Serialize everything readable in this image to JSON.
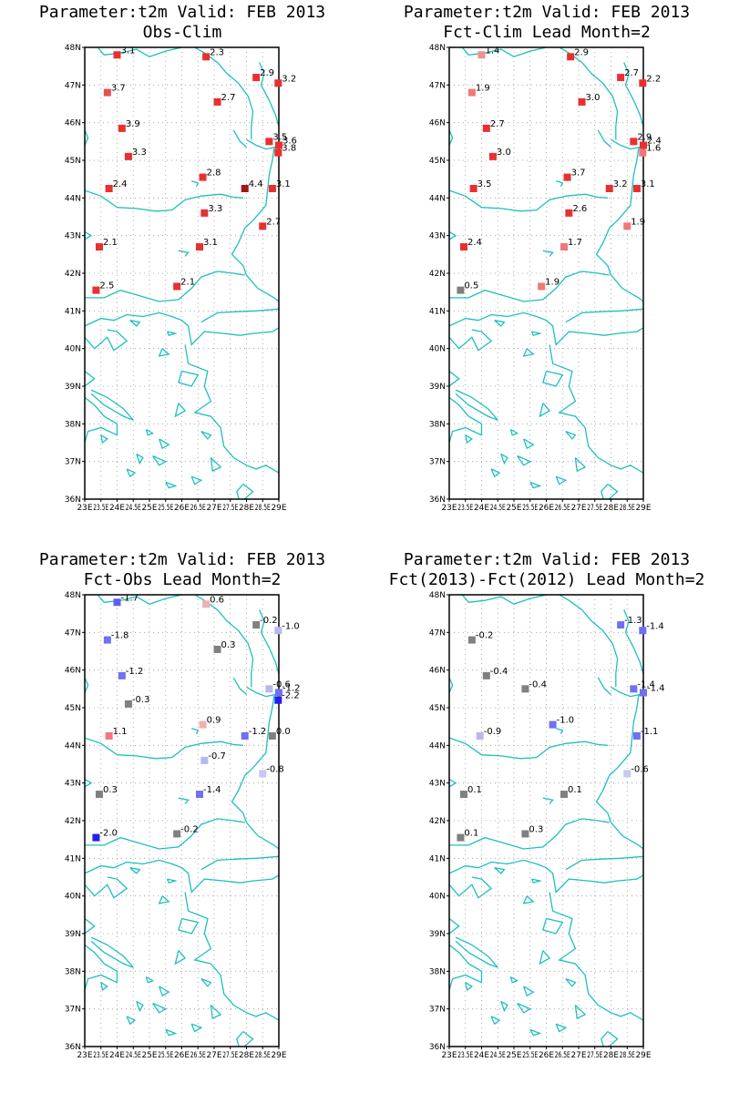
{
  "panels": [
    {
      "title1": "Parameter:t2m Valid: FEB 2013",
      "title2": "Obs-Clim",
      "stations": [
        {
          "lon": 24.0,
          "lat": 47.8,
          "label": "3.1",
          "color": "#e83030"
        },
        {
          "lon": 26.75,
          "lat": 47.75,
          "label": "2.3",
          "color": "#e83030"
        },
        {
          "lon": 28.3,
          "lat": 47.2,
          "label": "2.9",
          "color": "#e83030"
        },
        {
          "lon": 28.98,
          "lat": 47.05,
          "label": "3.2",
          "color": "#e83030"
        },
        {
          "lon": 23.7,
          "lat": 46.8,
          "label": "3.7",
          "color": "#e85050"
        },
        {
          "lon": 27.1,
          "lat": 46.55,
          "label": "2.7",
          "color": "#e83030"
        },
        {
          "lon": 24.15,
          "lat": 45.85,
          "label": "3.9",
          "color": "#e83030"
        },
        {
          "lon": 28.7,
          "lat": 45.5,
          "label": "3.5",
          "color": "#e83030"
        },
        {
          "lon": 29.0,
          "lat": 45.4,
          "label": "3.6",
          "color": "#e83030"
        },
        {
          "lon": 28.98,
          "lat": 45.2,
          "label": "3.8",
          "color": "#e83030"
        },
        {
          "lon": 24.35,
          "lat": 45.1,
          "label": "3.3",
          "color": "#e83030"
        },
        {
          "lon": 26.65,
          "lat": 44.55,
          "label": "2.8",
          "color": "#e83030"
        },
        {
          "lon": 27.95,
          "lat": 44.25,
          "label": "4.4",
          "color": "#a01818"
        },
        {
          "lon": 28.8,
          "lat": 44.25,
          "label": "3.1",
          "color": "#e83030"
        },
        {
          "lon": 23.75,
          "lat": 44.25,
          "label": "2.4",
          "color": "#e83030"
        },
        {
          "lon": 26.7,
          "lat": 43.6,
          "label": "3.3",
          "color": "#e83030"
        },
        {
          "lon": 28.5,
          "lat": 43.25,
          "label": "2.7",
          "color": "#e83030"
        },
        {
          "lon": 23.45,
          "lat": 42.7,
          "label": "2.1",
          "color": "#e83030"
        },
        {
          "lon": 26.55,
          "lat": 42.7,
          "label": "3.1",
          "color": "#e83030"
        },
        {
          "lon": 23.35,
          "lat": 41.55,
          "label": "2.5",
          "color": "#e83030"
        },
        {
          "lon": 25.85,
          "lat": 41.65,
          "label": "2.1",
          "color": "#e83030"
        }
      ]
    },
    {
      "title1": "Parameter:t2m Valid: FEB 2013",
      "title2": "Fct-Clim Lead Month=2",
      "stations": [
        {
          "lon": 24.0,
          "lat": 47.8,
          "label": "1.4",
          "color": "#f09090"
        },
        {
          "lon": 26.75,
          "lat": 47.75,
          "label": "2.9",
          "color": "#e83030"
        },
        {
          "lon": 28.3,
          "lat": 47.2,
          "label": "2.7",
          "color": "#e83030"
        },
        {
          "lon": 28.98,
          "lat": 47.05,
          "label": "2.2",
          "color": "#e83030"
        },
        {
          "lon": 23.7,
          "lat": 46.8,
          "label": "1.9",
          "color": "#f07878"
        },
        {
          "lon": 27.1,
          "lat": 46.55,
          "label": "3.0",
          "color": "#e83030"
        },
        {
          "lon": 24.15,
          "lat": 45.85,
          "label": "2.7",
          "color": "#e83030"
        },
        {
          "lon": 28.7,
          "lat": 45.5,
          "label": "2.9",
          "color": "#e83030"
        },
        {
          "lon": 29.0,
          "lat": 45.4,
          "label": "2.4",
          "color": "#e83030"
        },
        {
          "lon": 28.98,
          "lat": 45.2,
          "label": "1.6",
          "color": "#f07878"
        },
        {
          "lon": 24.35,
          "lat": 45.1,
          "label": "3.0",
          "color": "#e83030"
        },
        {
          "lon": 26.65,
          "lat": 44.55,
          "label": "3.7",
          "color": "#e83030"
        },
        {
          "lon": 27.95,
          "lat": 44.25,
          "label": "3.2",
          "color": "#e83030"
        },
        {
          "lon": 28.8,
          "lat": 44.25,
          "label": "3.1",
          "color": "#e83030"
        },
        {
          "lon": 23.75,
          "lat": 44.25,
          "label": "3.5",
          "color": "#e83030"
        },
        {
          "lon": 26.7,
          "lat": 43.6,
          "label": "2.6",
          "color": "#e83030"
        },
        {
          "lon": 28.5,
          "lat": 43.25,
          "label": "1.9",
          "color": "#f07878"
        },
        {
          "lon": 23.45,
          "lat": 42.7,
          "label": "2.4",
          "color": "#e83030"
        },
        {
          "lon": 26.55,
          "lat": 42.7,
          "label": "1.7",
          "color": "#f07878"
        },
        {
          "lon": 23.35,
          "lat": 41.55,
          "label": "0.5",
          "color": "#808080"
        },
        {
          "lon": 25.85,
          "lat": 41.65,
          "label": "1.9",
          "color": "#f07878"
        }
      ]
    },
    {
      "title1": "Parameter:t2m Valid: FEB 2013",
      "title2": "Fct-Obs Lead Month=2",
      "stations": [
        {
          "lon": 24.0,
          "lat": 47.8,
          "label": "-1.7",
          "color": "#6060f0"
        },
        {
          "lon": 26.75,
          "lat": 47.75,
          "label": "0.6",
          "color": "#f0b0b0"
        },
        {
          "lon": 28.3,
          "lat": 47.2,
          "label": "-0.2",
          "color": "#808080"
        },
        {
          "lon": 28.98,
          "lat": 47.05,
          "label": "-1.0",
          "color": "#b8b8f0"
        },
        {
          "lon": 23.7,
          "lat": 46.8,
          "label": "-1.8",
          "color": "#7070f0"
        },
        {
          "lon": 27.1,
          "lat": 46.55,
          "label": "0.3",
          "color": "#808080"
        },
        {
          "lon": 24.15,
          "lat": 45.85,
          "label": "-1.2",
          "color": "#7070f0"
        },
        {
          "lon": 28.7,
          "lat": 45.5,
          "label": "-0.6",
          "color": "#b8b8f0"
        },
        {
          "lon": 29.0,
          "lat": 45.4,
          "label": "-1.2",
          "color": "#7070f0"
        },
        {
          "lon": 28.98,
          "lat": 45.2,
          "label": "-2.2",
          "color": "#2020f0"
        },
        {
          "lon": 24.35,
          "lat": 45.1,
          "label": "-0.3",
          "color": "#808080"
        },
        {
          "lon": 26.65,
          "lat": 44.55,
          "label": "0.9",
          "color": "#f0b0b0"
        },
        {
          "lon": 27.95,
          "lat": 44.25,
          "label": "-1.2",
          "color": "#7070f0"
        },
        {
          "lon": 28.8,
          "lat": 44.25,
          "label": "0.0",
          "color": "#808080"
        },
        {
          "lon": 23.75,
          "lat": 44.25,
          "label": "1.1",
          "color": "#f07878"
        },
        {
          "lon": 26.7,
          "lat": 43.6,
          "label": "-0.7",
          "color": "#b8b8f0"
        },
        {
          "lon": 28.5,
          "lat": 43.25,
          "label": "-0.8",
          "color": "#c8c8f0"
        },
        {
          "lon": 23.45,
          "lat": 42.7,
          "label": "0.3",
          "color": "#808080"
        },
        {
          "lon": 26.55,
          "lat": 42.7,
          "label": "-1.4",
          "color": "#7070f0"
        },
        {
          "lon": 23.35,
          "lat": 41.55,
          "label": "-2.0",
          "color": "#2020f0"
        },
        {
          "lon": 25.85,
          "lat": 41.65,
          "label": "-0.2",
          "color": "#808080"
        }
      ]
    },
    {
      "title1": "Parameter:t2m Valid: FEB 2013",
      "title2": "Fct(2013)-Fct(2012) Lead Month=2",
      "stations": [
        {
          "lon": 28.3,
          "lat": 47.2,
          "label": "-1.3",
          "color": "#7070f0"
        },
        {
          "lon": 28.98,
          "lat": 47.05,
          "label": "-1.4",
          "color": "#7070f0"
        },
        {
          "lon": 23.7,
          "lat": 46.8,
          "label": "-0.2",
          "color": "#808080"
        },
        {
          "lon": 24.15,
          "lat": 45.85,
          "label": "-0.4",
          "color": "#808080"
        },
        {
          "lon": 25.35,
          "lat": 45.5,
          "label": "-0.4",
          "color": "#808080"
        },
        {
          "lon": 28.7,
          "lat": 45.5,
          "label": "-1.4",
          "color": "#7070f0"
        },
        {
          "lon": 29.0,
          "lat": 45.4,
          "label": "-1.4",
          "color": "#7070f0"
        },
        {
          "lon": 26.2,
          "lat": 44.55,
          "label": "-1.0",
          "color": "#7070f0"
        },
        {
          "lon": 23.95,
          "lat": 44.25,
          "label": "-0.9",
          "color": "#b8b8f0"
        },
        {
          "lon": 28.8,
          "lat": 44.25,
          "label": "-1.1",
          "color": "#7070f0"
        },
        {
          "lon": 28.5,
          "lat": 43.25,
          "label": "-0.6",
          "color": "#c8c8f0"
        },
        {
          "lon": 23.45,
          "lat": 42.7,
          "label": "0.1",
          "color": "#808080"
        },
        {
          "lon": 26.55,
          "lat": 42.7,
          "label": "0.1",
          "color": "#808080"
        },
        {
          "lon": 23.35,
          "lat": 41.55,
          "label": "0.1",
          "color": "#808080"
        },
        {
          "lon": 25.35,
          "lat": 41.65,
          "label": "0.3",
          "color": "#808080"
        }
      ]
    }
  ],
  "lat_ticks": [
    "48N",
    "47N",
    "46N",
    "45N",
    "44N",
    "43N",
    "42N",
    "41N",
    "40N",
    "39N",
    "38N",
    "37N",
    "36N"
  ],
  "lon_ticks": [
    "23E",
    "23.5E",
    "24E",
    "24.5E",
    "25E",
    "25.5E",
    "26E",
    "26.5E",
    "27E",
    "27.5E",
    "28E",
    "28.5E",
    "29E"
  ],
  "colors": {
    "coast": "#1fbfbf",
    "frame": "#000000"
  }
}
